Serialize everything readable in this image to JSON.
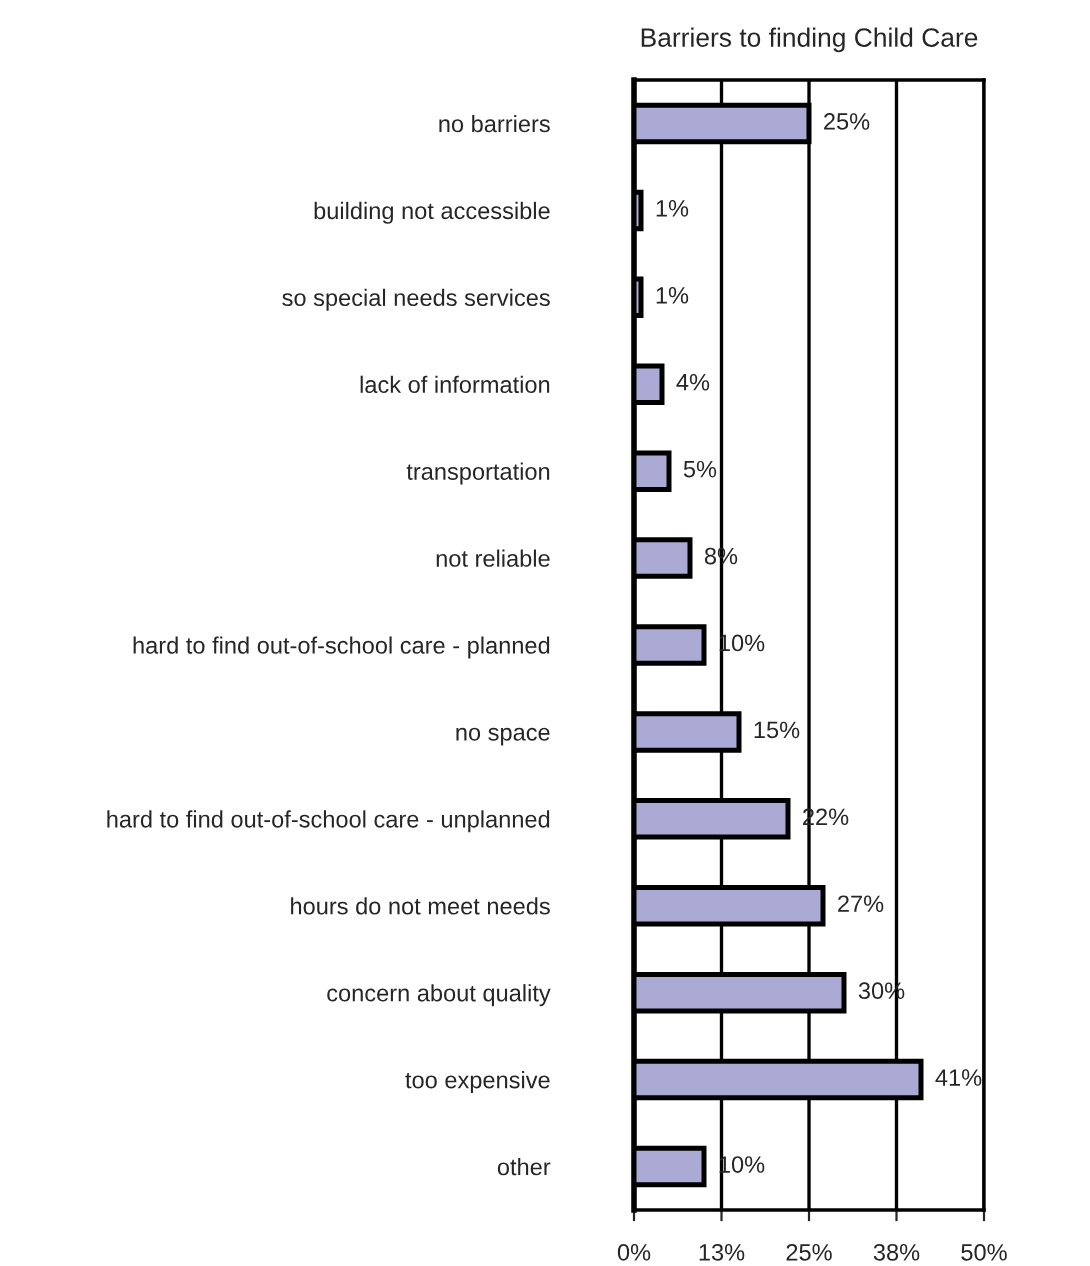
{
  "chart_data": {
    "type": "bar",
    "orientation": "horizontal",
    "title": "Barriers to finding Child Care",
    "categories": [
      "no barriers",
      "building not accessible",
      "so special needs services",
      "lack of information",
      "transportation",
      "not reliable",
      "hard to find out-of-school care - planned",
      "no space",
      "hard to find out-of-school care - unplanned",
      "hours do not meet needs",
      "concern about quality",
      "too expensive",
      "other"
    ],
    "values": [
      25,
      1,
      1,
      4,
      5,
      8,
      10,
      15,
      22,
      27,
      30,
      41,
      10
    ],
    "value_labels": [
      "25%",
      "1%",
      "1%",
      "4%",
      "5%",
      "8%",
      "10%",
      "15%",
      "22%",
      "27%",
      "30%",
      "41%",
      "10%"
    ],
    "color": "#aaaad4",
    "xlim": [
      0,
      50
    ],
    "xticks": [
      {
        "value": 0,
        "label": "0%"
      },
      {
        "value": 12.5,
        "label": "13%"
      },
      {
        "value": 25,
        "label": "25%"
      },
      {
        "value": 37.5,
        "label": "38%"
      },
      {
        "value": 50,
        "label": "50%"
      }
    ],
    "grid": "x",
    "legend": false
  }
}
